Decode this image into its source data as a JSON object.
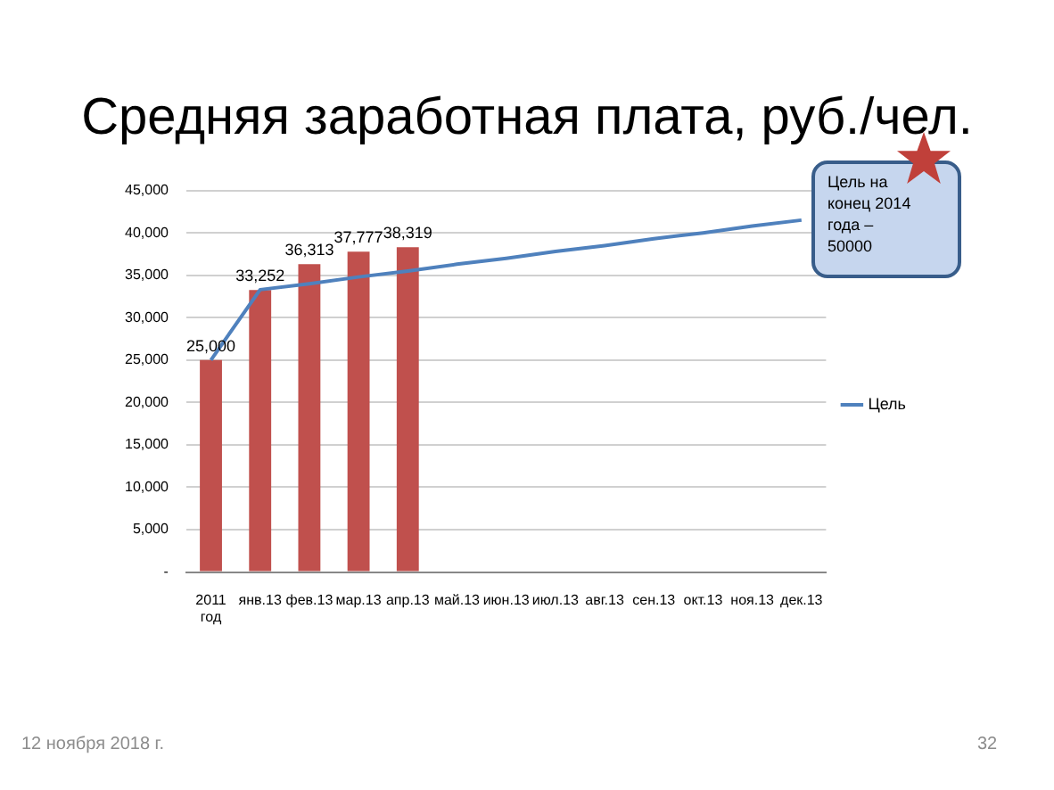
{
  "chart_data": {
    "type": "bar",
    "title": "Средняя заработная плата, руб./чел.",
    "categories": [
      "2011 год",
      "янв.13",
      "фев.13",
      "мар.13",
      "апр.13",
      "май.13",
      "июн.13",
      "июл.13",
      "авг.13",
      "сен.13",
      "окт.13",
      "ноя.13",
      "дек.13"
    ],
    "series": [
      {
        "color": "#c0504d",
        "values": [
          25000,
          33252,
          36313,
          37777,
          38319,
          null,
          null,
          null,
          null,
          null,
          null,
          null,
          null
        ],
        "value_labels": [
          "25,000",
          "33,252",
          "36,313",
          "37,777",
          "38,319",
          null,
          null,
          null,
          null,
          null,
          null,
          null,
          null
        ]
      },
      {
        "type": "line",
        "name": "Цель",
        "color": "#4f81bd",
        "values": [
          25000,
          33300,
          34000,
          34800,
          35500,
          36300,
          37000,
          37800,
          38500,
          39300,
          40000,
          40800,
          41500
        ]
      }
    ],
    "ylim": [
      0,
      45000
    ],
    "yticks": [
      {
        "value": 0,
        "label": "-"
      },
      {
        "value": 5000,
        "label": "5,000"
      },
      {
        "value": 10000,
        "label": "10,000"
      },
      {
        "value": 15000,
        "label": "15,000"
      },
      {
        "value": 20000,
        "label": "20,000"
      },
      {
        "value": 25000,
        "label": "25,000"
      },
      {
        "value": 30000,
        "label": "30,000"
      },
      {
        "value": 35000,
        "label": "35,000"
      },
      {
        "value": 40000,
        "label": "40,000"
      },
      {
        "value": 45000,
        "label": "45,000"
      }
    ],
    "grid": "y",
    "legend": "right",
    "marker": "none",
    "line_style": "solid",
    "annotations": [
      "Цель на конец 2014 года – 50000",
      "12 ноября 2018 г.",
      "32"
    ]
  }
}
